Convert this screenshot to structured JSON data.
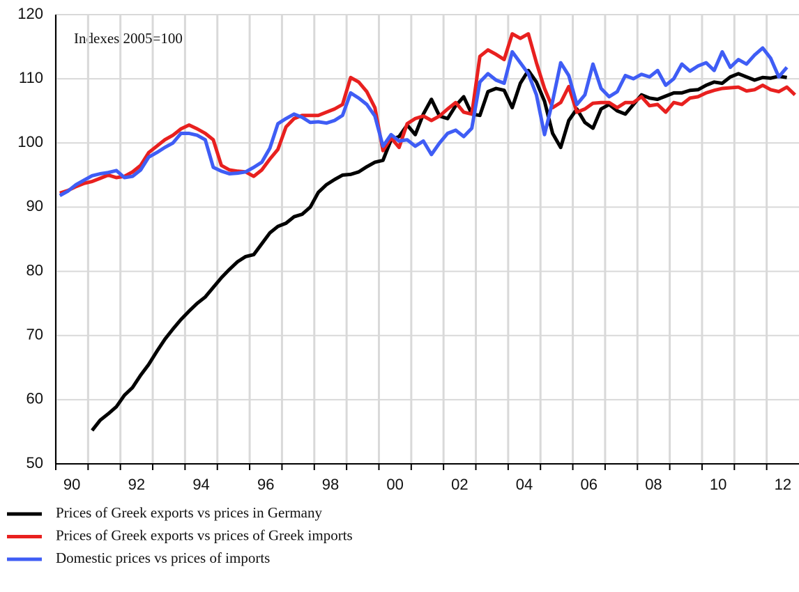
{
  "chart_data": {
    "type": "line",
    "annotation": "Indexes 2005=100",
    "x": [
      1990.125,
      1990.375,
      1990.625,
      1990.875,
      1991.125,
      1991.375,
      1991.625,
      1991.875,
      1992.125,
      1992.375,
      1992.625,
      1992.875,
      1993.125,
      1993.375,
      1993.625,
      1993.875,
      1994.125,
      1994.375,
      1994.625,
      1994.875,
      1995.125,
      1995.375,
      1995.625,
      1995.875,
      1996.125,
      1996.375,
      1996.625,
      1996.875,
      1997.125,
      1997.375,
      1997.625,
      1997.875,
      1998.125,
      1998.375,
      1998.625,
      1998.875,
      1999.125,
      1999.375,
      1999.625,
      1999.875,
      2000.125,
      2000.375,
      2000.625,
      2000.875,
      2001.125,
      2001.375,
      2001.625,
      2001.875,
      2002.125,
      2002.375,
      2002.625,
      2002.875,
      2003.125,
      2003.375,
      2003.625,
      2003.875,
      2004.125,
      2004.375,
      2004.625,
      2004.875,
      2005.125,
      2005.375,
      2005.625,
      2005.875,
      2006.125,
      2006.375,
      2006.625,
      2006.875,
      2007.125,
      2007.375,
      2007.625,
      2007.875,
      2008.125,
      2008.375,
      2008.625,
      2008.875,
      2009.125,
      2009.375,
      2009.625,
      2009.875,
      2010.125,
      2010.375,
      2010.625,
      2010.875,
      2011.125,
      2011.375,
      2011.625,
      2011.875,
      2012.125,
      2012.375,
      2012.625,
      2012.875
    ],
    "series": [
      {
        "name": "Prices of Greek exports vs prices in Germany",
        "color": "#000000",
        "values": [
          null,
          null,
          null,
          null,
          55.2,
          56.8,
          57.8,
          58.9,
          60.7,
          61.9,
          63.8,
          65.5,
          67.5,
          69.4,
          71,
          72.5,
          73.8,
          75,
          76,
          77.5,
          79,
          80.3,
          81.5,
          82.3,
          82.6,
          84.3,
          86,
          87,
          87.5,
          88.5,
          88.9,
          90,
          92.3,
          93.5,
          94.3,
          95,
          95.1,
          95.5,
          96.3,
          97,
          97.3,
          100.5,
          101,
          102.8,
          101.3,
          104.5,
          106.8,
          104.2,
          103.8,
          105.8,
          107.2,
          104.5,
          104.3,
          108,
          108.5,
          108.2,
          105.5,
          109.3,
          111.3,
          109.5,
          106.5,
          101.5,
          99.3,
          103.5,
          105.3,
          103.2,
          102.3,
          105.3,
          106,
          105,
          104.5,
          106,
          107.5,
          107,
          106.8,
          107.3,
          107.8,
          107.8,
          108.2,
          108.3,
          109,
          109.5,
          109.3,
          110.3,
          110.8,
          110.3,
          109.8,
          110.2,
          110.1,
          110.4,
          110.2,
          null
        ]
      },
      {
        "name": "Prices of Greek exports vs prices of Greek imports",
        "color": "#e8201f",
        "values": [
          92.2,
          92.6,
          93.2,
          93.7,
          94,
          94.5,
          95,
          94.6,
          94.8,
          95.5,
          96.5,
          98.5,
          99.5,
          100.5,
          101.2,
          102.2,
          102.8,
          102.2,
          101.5,
          100.5,
          96.5,
          95.8,
          95.6,
          95.5,
          94.8,
          95.8,
          97.5,
          99,
          102.5,
          103.8,
          104.3,
          104.3,
          104.3,
          104.8,
          105.3,
          106,
          110.2,
          109.5,
          108,
          105.5,
          98.8,
          100.8,
          99.3,
          103,
          103.8,
          104.2,
          103.5,
          104.2,
          105.3,
          106.3,
          104.8,
          104.5,
          113.5,
          114.5,
          113.8,
          113,
          117,
          116.3,
          117,
          112.5,
          108.5,
          105.5,
          106.3,
          108.8,
          104.8,
          105.3,
          106.2,
          106.3,
          106.3,
          105.5,
          106.3,
          106.3,
          107.2,
          105.8,
          106,
          104.8,
          106.3,
          106,
          107,
          107.2,
          107.8,
          108.2,
          108.5,
          108.6,
          108.7,
          108.1,
          108.3,
          109,
          108.3,
          108,
          108.7,
          107.5
        ]
      },
      {
        "name": "Domestic prices vs prices of imports",
        "color": "#3f5df5",
        "values": [
          91.8,
          92.5,
          93.5,
          94.2,
          94.9,
          95.2,
          95.4,
          95.7,
          94.6,
          94.8,
          95.8,
          97.8,
          98.5,
          99.3,
          100,
          101.5,
          101.5,
          101.2,
          100.5,
          96.2,
          95.6,
          95.2,
          95.3,
          95.5,
          96.2,
          97,
          99.2,
          103,
          103.8,
          104.5,
          104,
          103.2,
          103.3,
          103.1,
          103.5,
          104.3,
          107.8,
          107,
          106,
          104.2,
          99.5,
          101.3,
          100.3,
          100.5,
          99.5,
          100.3,
          98.2,
          100,
          101.5,
          102,
          101,
          102.3,
          109.5,
          110.8,
          109.8,
          109.3,
          114.2,
          112.5,
          110.8,
          107.5,
          101.3,
          106.5,
          112.5,
          110.5,
          106,
          107.5,
          112.3,
          108.5,
          107.2,
          108,
          110.5,
          110,
          110.7,
          110.3,
          111.3,
          109,
          110,
          112.3,
          111.2,
          112,
          112.5,
          111.3,
          114.2,
          111.8,
          113,
          112.3,
          113.7,
          114.8,
          113.2,
          110.3,
          111.8,
          null
        ]
      }
    ],
    "xlim": [
      1990,
      2013
    ],
    "xticks": [
      {
        "value": 1990,
        "label": "90"
      },
      {
        "value": 1992,
        "label": "92"
      },
      {
        "value": 1994,
        "label": "94"
      },
      {
        "value": 1996,
        "label": "96"
      },
      {
        "value": 1998,
        "label": "98"
      },
      {
        "value": 2000,
        "label": "00"
      },
      {
        "value": 2002,
        "label": "02"
      },
      {
        "value": 2004,
        "label": "04"
      },
      {
        "value": 2006,
        "label": "06"
      },
      {
        "value": 2008,
        "label": "08"
      },
      {
        "value": 2010,
        "label": "10"
      },
      {
        "value": 2012,
        "label": "12"
      }
    ],
    "xminor": [
      1991,
      1993,
      1995,
      1997,
      1999,
      2001,
      2003,
      2005,
      2007,
      2009,
      2011
    ],
    "ylim": [
      50,
      120
    ],
    "yticks": [
      50,
      60,
      70,
      80,
      90,
      100,
      110,
      120
    ],
    "grid": true,
    "legend": "bottom"
  }
}
